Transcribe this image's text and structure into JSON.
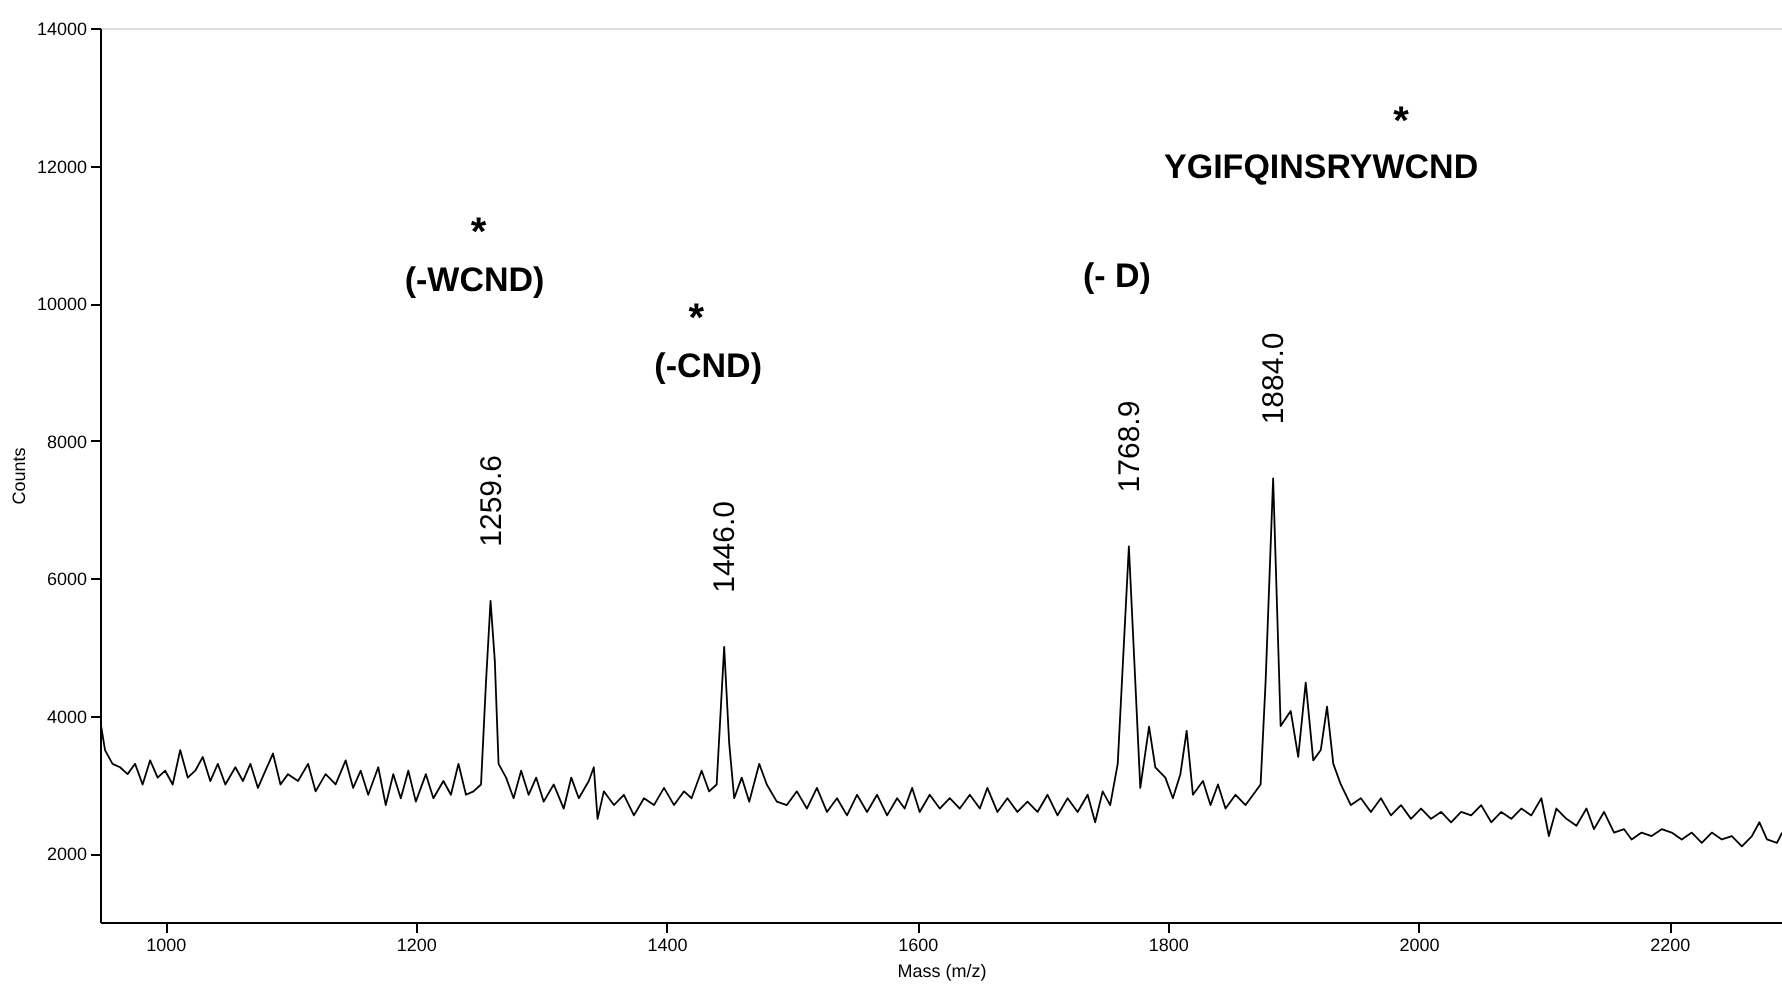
{
  "chart_data": {
    "type": "line",
    "xlabel": "Mass (m/z)",
    "ylabel": "Counts",
    "grid": false,
    "marker": "none",
    "line_style": "solid",
    "xlim": [
      948,
      2290
    ],
    "ylim": [
      1000,
      14000
    ],
    "xticks": [
      1000,
      1200,
      1400,
      1600,
      1800,
      2000,
      2200
    ],
    "yticks": [
      2000,
      4000,
      6000,
      8000,
      10000,
      12000,
      14000
    ],
    "series": [
      {
        "color": "#000000",
        "x": [
          948,
          952,
          958,
          964,
          970,
          976,
          982,
          988,
          994,
          1000,
          1006,
          1012,
          1018,
          1024,
          1030,
          1036,
          1042,
          1048,
          1056,
          1062,
          1068,
          1074,
          1080,
          1086,
          1092,
          1098,
          1106,
          1114,
          1120,
          1128,
          1136,
          1144,
          1150,
          1156,
          1162,
          1170,
          1176,
          1182,
          1188,
          1194,
          1200,
          1208,
          1214,
          1222,
          1228,
          1234,
          1240,
          1246,
          1252,
          1256,
          1259.6,
          1263,
          1266,
          1272,
          1278,
          1284,
          1290,
          1296,
          1302,
          1310,
          1318,
          1324,
          1330,
          1338,
          1342,
          1345,
          1350,
          1358,
          1366,
          1374,
          1382,
          1390,
          1398,
          1406,
          1414,
          1420,
          1428,
          1434,
          1440,
          1446,
          1450,
          1454,
          1460,
          1466,
          1474,
          1480,
          1488,
          1496,
          1504,
          1512,
          1520,
          1528,
          1536,
          1544,
          1552,
          1560,
          1568,
          1576,
          1584,
          1590,
          1596,
          1602,
          1610,
          1618,
          1626,
          1634,
          1642,
          1650,
          1656,
          1664,
          1672,
          1680,
          1688,
          1696,
          1704,
          1712,
          1720,
          1728,
          1736,
          1742,
          1748,
          1754,
          1760,
          1768.9,
          1774,
          1778,
          1785,
          1790,
          1798,
          1804,
          1810,
          1815,
          1820,
          1828,
          1834,
          1840,
          1846,
          1854,
          1862,
          1868,
          1874,
          1878,
          1884,
          1890,
          1898,
          1904,
          1910,
          1916,
          1922,
          1927,
          1932,
          1938,
          1946,
          1954,
          1962,
          1970,
          1978,
          1986,
          1994,
          2002,
          2010,
          2018,
          2026,
          2034,
          2042,
          2050,
          2058,
          2066,
          2074,
          2082,
          2090,
          2098,
          2104,
          2110,
          2118,
          2126,
          2134,
          2140,
          2148,
          2156,
          2164,
          2170,
          2178,
          2186,
          2194,
          2202,
          2210,
          2218,
          2226,
          2234,
          2242,
          2250,
          2258,
          2266,
          2272,
          2278,
          2286,
          2290
        ],
        "values": [
          3950,
          3500,
          3300,
          3250,
          3150,
          3300,
          3000,
          3350,
          3100,
          3200,
          3000,
          3500,
          3100,
          3200,
          3400,
          3050,
          3300,
          3000,
          3250,
          3050,
          3300,
          2950,
          3200,
          3450,
          3000,
          3150,
          3050,
          3300,
          2900,
          3150,
          3000,
          3350,
          2950,
          3200,
          2850,
          3250,
          2700,
          3150,
          2800,
          3200,
          2750,
          3150,
          2800,
          3050,
          2850,
          3300,
          2850,
          2900,
          3000,
          4500,
          5670,
          4800,
          3300,
          3100,
          2800,
          3200,
          2850,
          3100,
          2750,
          3000,
          2650,
          3100,
          2800,
          3050,
          3250,
          2500,
          2900,
          2700,
          2850,
          2550,
          2800,
          2700,
          2950,
          2700,
          2900,
          2800,
          3200,
          2900,
          3000,
          5000,
          3600,
          2800,
          3100,
          2750,
          3300,
          3000,
          2750,
          2700,
          2900,
          2650,
          2950,
          2600,
          2800,
          2550,
          2850,
          2600,
          2850,
          2550,
          2800,
          2650,
          2950,
          2600,
          2850,
          2650,
          2800,
          2650,
          2850,
          2650,
          2950,
          2600,
          2800,
          2600,
          2750,
          2600,
          2850,
          2550,
          2800,
          2600,
          2850,
          2450,
          2900,
          2700,
          3300,
          6460,
          4500,
          2950,
          3840,
          3250,
          3100,
          2800,
          3150,
          3780,
          2850,
          3050,
          2700,
          3000,
          2650,
          2850,
          2700,
          2850,
          3000,
          4500,
          7450,
          3850,
          4070,
          3400,
          4480,
          3350,
          3500,
          4130,
          3300,
          3000,
          2700,
          2800,
          2600,
          2800,
          2550,
          2700,
          2500,
          2650,
          2500,
          2600,
          2450,
          2600,
          2550,
          2700,
          2450,
          2600,
          2500,
          2650,
          2550,
          2800,
          2250,
          2650,
          2500,
          2400,
          2650,
          2350,
          2600,
          2300,
          2350,
          2200,
          2300,
          2250,
          2350,
          2300,
          2200,
          2300,
          2150,
          2300,
          2200,
          2250,
          2100,
          2250,
          2450,
          2200,
          2150,
          2300
        ]
      }
    ],
    "annotations": [
      {
        "text": "1259.6",
        "x": 1259.6,
        "y": 5670
      },
      {
        "text": "1446.0",
        "x": 1446,
        "y": 5000
      },
      {
        "text": "1768.9",
        "x": 1768.9,
        "y": 6460
      },
      {
        "text": "1884.0",
        "x": 1884,
        "y": 7450
      },
      "(-WCND)",
      "(-CND)",
      "(- D)",
      "YGIFQINSRYWCND",
      "*",
      "*",
      "*"
    ]
  }
}
